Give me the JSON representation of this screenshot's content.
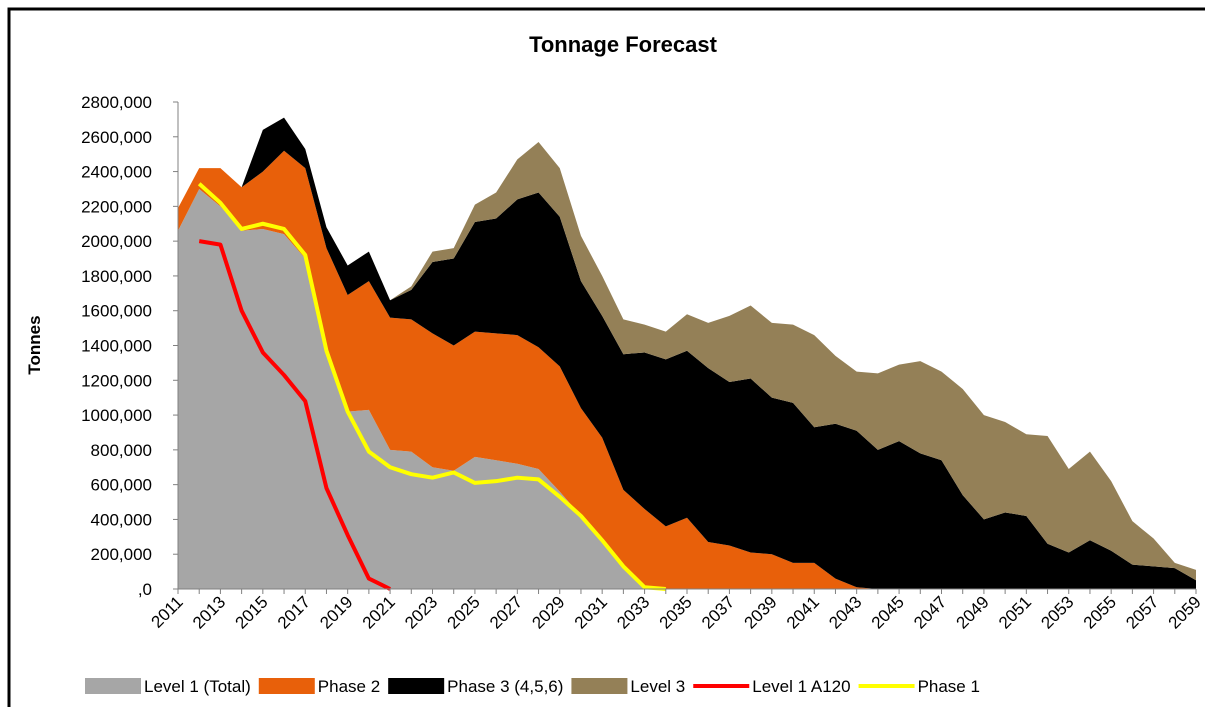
{
  "chart_data": {
    "type": "stacked-area",
    "title": "Tonnage Forecast",
    "y_label": "Tonnes",
    "categories": [
      "2011",
      null,
      "2013",
      null,
      "2015",
      null,
      "2017",
      null,
      "2019",
      null,
      "2021",
      null,
      "2023",
      null,
      "2025",
      null,
      "2027",
      null,
      "2029",
      null,
      "2031",
      null,
      "2033",
      null,
      "2035",
      null,
      "2037",
      null,
      "2039",
      null,
      "2041",
      null,
      "2043",
      null,
      "2045",
      null,
      "2047",
      null,
      "2049",
      null,
      "2051",
      null,
      "2053",
      null,
      "2055",
      null,
      "2057",
      null,
      "2059"
    ],
    "ylim": [
      0,
      2800000
    ],
    "yticks": [
      {
        "value": 0,
        "label": ",0"
      },
      {
        "value": 200000,
        "label": "200,000"
      },
      {
        "value": 400000,
        "label": "400,000"
      },
      {
        "value": 600000,
        "label": "600,000"
      },
      {
        "value": 800000,
        "label": "800,000"
      },
      {
        "value": 1000000,
        "label": "1000,000"
      },
      {
        "value": 1200000,
        "label": "1200,000"
      },
      {
        "value": 1400000,
        "label": "1400,000"
      },
      {
        "value": 1600000,
        "label": "1600,000"
      },
      {
        "value": 1800000,
        "label": "1800,000"
      },
      {
        "value": 2000000,
        "label": "2000,000"
      },
      {
        "value": 2200000,
        "label": "2200,000"
      },
      {
        "value": 2400000,
        "label": "2400,000"
      },
      {
        "value": 2600000,
        "label": "2600,000"
      },
      {
        "value": 2800000,
        "label": "2800,000"
      }
    ],
    "legend": "bottom",
    "series": [
      {
        "name": "Level 1 (Total)",
        "type": "area",
        "color": "#a6a6a6",
        "values": [
          2060000,
          2300000,
          2200000,
          2060000,
          2070000,
          2040000,
          1900000,
          1350000,
          1020000,
          1030000,
          800000,
          790000,
          700000,
          680000,
          760000,
          740000,
          720000,
          690000,
          560000,
          420000,
          280000,
          130000,
          0,
          0,
          0,
          0,
          0,
          0,
          0,
          0,
          0,
          0,
          0,
          0,
          0,
          0,
          0,
          0,
          0,
          0,
          0,
          0,
          0,
          0,
          0,
          0,
          0,
          0,
          0
        ]
      },
      {
        "name": "Phase 2",
        "type": "area",
        "color": "#e8600a",
        "values": [
          130000,
          120000,
          220000,
          250000,
          330000,
          480000,
          520000,
          610000,
          670000,
          740000,
          760000,
          760000,
          770000,
          720000,
          720000,
          730000,
          740000,
          700000,
          720000,
          620000,
          590000,
          440000,
          460000,
          360000,
          410000,
          270000,
          250000,
          210000,
          200000,
          150000,
          150000,
          60000,
          10000,
          0,
          0,
          0,
          0,
          0,
          0,
          0,
          0,
          0,
          0,
          0,
          0,
          0,
          0,
          0,
          0
        ]
      },
      {
        "name": "Phase 3 (4,5,6)",
        "type": "area",
        "color": "#000000",
        "values": [
          0,
          0,
          0,
          0,
          240000,
          190000,
          110000,
          120000,
          170000,
          170000,
          100000,
          170000,
          410000,
          500000,
          630000,
          660000,
          780000,
          890000,
          860000,
          730000,
          700000,
          780000,
          900000,
          960000,
          960000,
          1000000,
          940000,
          1000000,
          900000,
          920000,
          780000,
          890000,
          900000,
          800000,
          850000,
          780000,
          740000,
          540000,
          400000,
          440000,
          420000,
          260000,
          210000,
          280000,
          220000,
          140000,
          130000,
          120000,
          50000
        ]
      },
      {
        "name": "Level 3",
        "type": "area",
        "color": "#948057",
        "values": [
          0,
          0,
          0,
          0,
          0,
          0,
          0,
          0,
          0,
          0,
          0,
          20000,
          60000,
          60000,
          100000,
          150000,
          230000,
          290000,
          280000,
          260000,
          230000,
          200000,
          160000,
          160000,
          210000,
          260000,
          380000,
          420000,
          430000,
          450000,
          530000,
          390000,
          340000,
          440000,
          440000,
          530000,
          510000,
          610000,
          600000,
          520000,
          470000,
          620000,
          480000,
          510000,
          400000,
          250000,
          160000,
          30000,
          60000
        ]
      },
      {
        "name": "Level 1 A120",
        "type": "line",
        "color": "#ff0000",
        "values": [
          null,
          2000000,
          1980000,
          1600000,
          1360000,
          1230000,
          1080000,
          580000,
          310000,
          60000,
          0,
          null,
          null,
          null,
          null,
          null,
          null,
          null,
          null,
          null,
          null,
          null,
          null,
          null,
          null,
          null,
          null,
          null,
          null,
          null,
          null,
          null,
          null,
          null,
          null,
          null,
          null,
          null,
          null,
          null,
          null,
          null,
          null,
          null,
          null,
          null,
          null,
          null,
          null
        ]
      },
      {
        "name": "Phase 1",
        "type": "line",
        "color": "#ffff00",
        "values": [
          null,
          2330000,
          2220000,
          2070000,
          2100000,
          2070000,
          1920000,
          1370000,
          1020000,
          790000,
          700000,
          660000,
          640000,
          670000,
          610000,
          620000,
          640000,
          630000,
          530000,
          420000,
          280000,
          130000,
          10000,
          0,
          null,
          null,
          null,
          null,
          null,
          null,
          null,
          null,
          null,
          null,
          null,
          null,
          null,
          null,
          null,
          null,
          null,
          null,
          null,
          null,
          null,
          null,
          null,
          null,
          null
        ]
      }
    ]
  }
}
